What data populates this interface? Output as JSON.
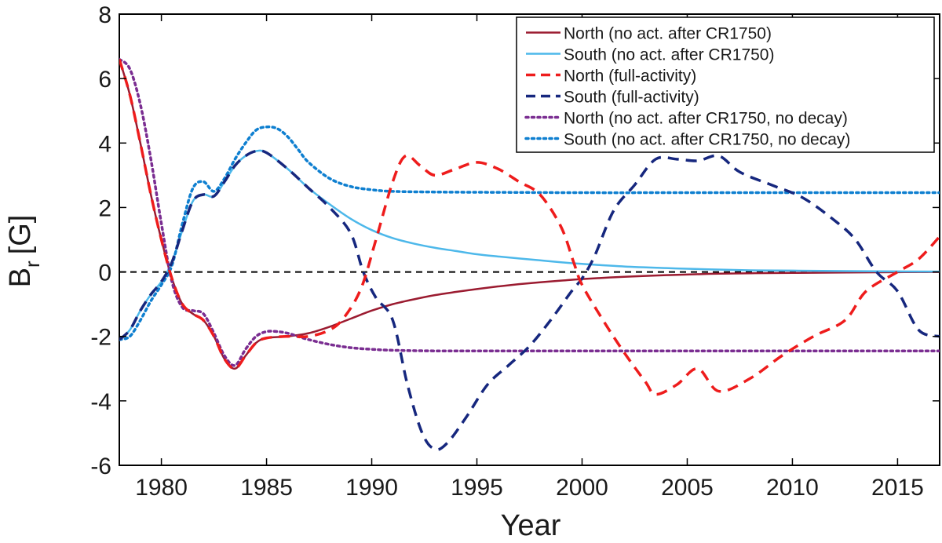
{
  "chart_data": {
    "type": "line",
    "title": "",
    "xlabel": "Year",
    "ylabel_main": "B",
    "ylabel_sub": "r",
    "ylabel_unit": "[G]",
    "xlim": [
      1978,
      2017
    ],
    "ylim": [
      -6,
      8
    ],
    "xticks": [
      1980,
      1985,
      1990,
      1995,
      2000,
      2005,
      2010,
      2015
    ],
    "yticks": [
      -6,
      -4,
      -2,
      0,
      2,
      4,
      6,
      8
    ],
    "xtick_labels": [
      "1980",
      "1985",
      "1990",
      "1995",
      "2000",
      "2005",
      "2010",
      "2015"
    ],
    "ytick_labels": [
      "-6",
      "-4",
      "-2",
      "0",
      "2",
      "4",
      "6",
      "8"
    ],
    "zero_line": {
      "y": 0,
      "style": "dashed",
      "color": "#000000"
    },
    "legend_position": "top-right",
    "series": [
      {
        "name": "North (no act. after CR1750)",
        "color": "#9b1b30",
        "style": "solid",
        "x": [
          1978,
          1978.5,
          1979,
          1979.5,
          1980,
          1980.5,
          1981,
          1981.5,
          1982,
          1982.5,
          1983,
          1983.5,
          1984,
          1984.5,
          1985,
          1986,
          1987,
          1988,
          1989,
          1990,
          1991,
          1992,
          1993,
          1994,
          1995,
          1996,
          1997,
          1998,
          1999,
          2000,
          2002,
          2004,
          2006,
          2008,
          2010,
          2012,
          2014,
          2017
        ],
        "y": [
          6.6,
          5.5,
          4.0,
          2.4,
          1.0,
          -0.2,
          -1.0,
          -1.3,
          -1.5,
          -2.0,
          -2.7,
          -3.0,
          -2.6,
          -2.2,
          -2.05,
          -2.0,
          -1.9,
          -1.7,
          -1.45,
          -1.2,
          -1.0,
          -0.85,
          -0.72,
          -0.62,
          -0.53,
          -0.45,
          -0.38,
          -0.32,
          -0.27,
          -0.22,
          -0.15,
          -0.1,
          -0.06,
          -0.04,
          -0.03,
          -0.02,
          -0.01,
          0.0
        ]
      },
      {
        "name": "South (no act. after CR1750)",
        "color": "#4db8ea",
        "style": "solid",
        "x": [
          1978,
          1978.5,
          1979,
          1979.5,
          1980,
          1980.5,
          1981,
          1981.5,
          1982,
          1982.5,
          1983,
          1983.5,
          1984,
          1984.5,
          1985,
          1986,
          1987,
          1988,
          1989,
          1990,
          1991,
          1992,
          1993,
          1994,
          1995,
          1996,
          1997,
          1998,
          1999,
          2000,
          2002,
          2004,
          2006,
          2008,
          2010,
          2012,
          2014,
          2017
        ],
        "y": [
          -2.1,
          -1.8,
          -1.2,
          -0.7,
          -0.3,
          0.3,
          1.3,
          2.2,
          2.4,
          2.35,
          2.8,
          3.3,
          3.6,
          3.75,
          3.7,
          3.2,
          2.6,
          2.1,
          1.65,
          1.3,
          1.05,
          0.88,
          0.75,
          0.65,
          0.55,
          0.48,
          0.42,
          0.36,
          0.3,
          0.25,
          0.17,
          0.12,
          0.08,
          0.05,
          0.04,
          0.03,
          0.02,
          0.01
        ]
      },
      {
        "name": "North (full-activity)",
        "color": "#ee1c1c",
        "style": "dashed",
        "x": [
          1978,
          1978.5,
          1979,
          1979.5,
          1980,
          1980.5,
          1981,
          1981.5,
          1982,
          1982.5,
          1983,
          1983.5,
          1984,
          1984.5,
          1985,
          1986,
          1987,
          1988,
          1988.7,
          1989.5,
          1990.2,
          1991,
          1991.6,
          1992.3,
          1993,
          1994,
          1995,
          1996,
          1997,
          1998,
          1999,
          1999.6,
          2000,
          2001,
          2002,
          2003,
          2003.5,
          2004.5,
          2005.5,
          2006.5,
          2008,
          2009.5,
          2011,
          2012.5,
          2013.5,
          2015,
          2016,
          2017
        ],
        "y": [
          6.6,
          5.5,
          4.0,
          2.4,
          1.0,
          -0.2,
          -1.0,
          -1.3,
          -1.5,
          -2.0,
          -2.7,
          -3.0,
          -2.6,
          -2.2,
          -2.05,
          -2.0,
          -2.0,
          -1.8,
          -1.4,
          -0.5,
          1.0,
          2.8,
          3.6,
          3.3,
          3.0,
          3.2,
          3.4,
          3.2,
          2.8,
          2.4,
          1.4,
          0.3,
          -0.4,
          -1.5,
          -2.5,
          -3.4,
          -3.8,
          -3.5,
          -3.0,
          -3.7,
          -3.3,
          -2.6,
          -2.0,
          -1.5,
          -0.6,
          0.0,
          0.4,
          1.1
        ]
      },
      {
        "name": "South (full-activity)",
        "color": "#16277e",
        "style": "dashed",
        "x": [
          1978,
          1978.5,
          1979,
          1979.5,
          1980,
          1980.5,
          1981,
          1981.5,
          1982,
          1982.5,
          1983,
          1983.5,
          1984,
          1984.5,
          1985,
          1986,
          1987,
          1988,
          1989,
          1989.6,
          1990.2,
          1991,
          1991.7,
          1992.4,
          1993,
          1993.6,
          1994.5,
          1995.5,
          1996.5,
          1997.5,
          1998.5,
          1999.5,
          2000,
          2000.6,
          2001.5,
          2002.5,
          2003.5,
          2004.5,
          2005.5,
          2006.5,
          2007.5,
          2009,
          2010.5,
          2012,
          2013,
          2014,
          2015,
          2016,
          2017
        ],
        "y": [
          -2.1,
          -1.8,
          -1.2,
          -0.7,
          -0.3,
          0.3,
          1.3,
          2.2,
          2.4,
          2.35,
          2.8,
          3.3,
          3.6,
          3.75,
          3.7,
          3.2,
          2.6,
          2.0,
          1.2,
          0.0,
          -0.8,
          -1.5,
          -3.5,
          -5.0,
          -5.5,
          -5.3,
          -4.5,
          -3.5,
          -2.9,
          -2.3,
          -1.5,
          -0.6,
          -0.2,
          0.5,
          1.9,
          2.7,
          3.5,
          3.5,
          3.45,
          3.6,
          3.1,
          2.7,
          2.3,
          1.6,
          1.0,
          0.0,
          -0.6,
          -1.8,
          -2.0
        ]
      },
      {
        "name": "North (no act. after CR1750, no decay)",
        "color": "#7a2d91",
        "style": "dotted",
        "x": [
          1978,
          1978.5,
          1979,
          1979.5,
          1980,
          1980.5,
          1981,
          1981.5,
          1982,
          1982.5,
          1983,
          1983.5,
          1984,
          1984.5,
          1985,
          1985.5,
          1986,
          1986.5,
          1987,
          1988,
          1989,
          1990,
          1991,
          1993,
          1996,
          2000,
          2005,
          2010,
          2015,
          2017
        ],
        "y": [
          6.6,
          6.3,
          5.2,
          3.5,
          1.5,
          -0.3,
          -1.1,
          -1.2,
          -1.3,
          -1.9,
          -2.6,
          -2.9,
          -2.4,
          -2.0,
          -1.85,
          -1.85,
          -1.9,
          -2.0,
          -2.1,
          -2.25,
          -2.35,
          -2.4,
          -2.43,
          -2.45,
          -2.45,
          -2.45,
          -2.45,
          -2.45,
          -2.45,
          -2.45
        ]
      },
      {
        "name": "South (no act. after CR1750, no decay)",
        "color": "#0e7fd0",
        "style": "dotted",
        "x": [
          1978,
          1978.5,
          1979,
          1979.5,
          1980,
          1980.5,
          1981,
          1981.5,
          1982,
          1982.5,
          1983,
          1983.5,
          1984,
          1984.5,
          1985,
          1985.5,
          1986,
          1986.5,
          1987,
          1988,
          1989,
          1990,
          1991,
          1993,
          1996,
          2000,
          2005,
          2010,
          2015,
          2017
        ],
        "y": [
          -2.1,
          -2.0,
          -1.5,
          -0.9,
          -0.4,
          0.2,
          1.5,
          2.6,
          2.8,
          2.5,
          2.9,
          3.5,
          4.0,
          4.4,
          4.5,
          4.45,
          4.2,
          3.8,
          3.4,
          2.9,
          2.65,
          2.55,
          2.5,
          2.48,
          2.47,
          2.46,
          2.46,
          2.46,
          2.46,
          2.46
        ]
      }
    ]
  }
}
